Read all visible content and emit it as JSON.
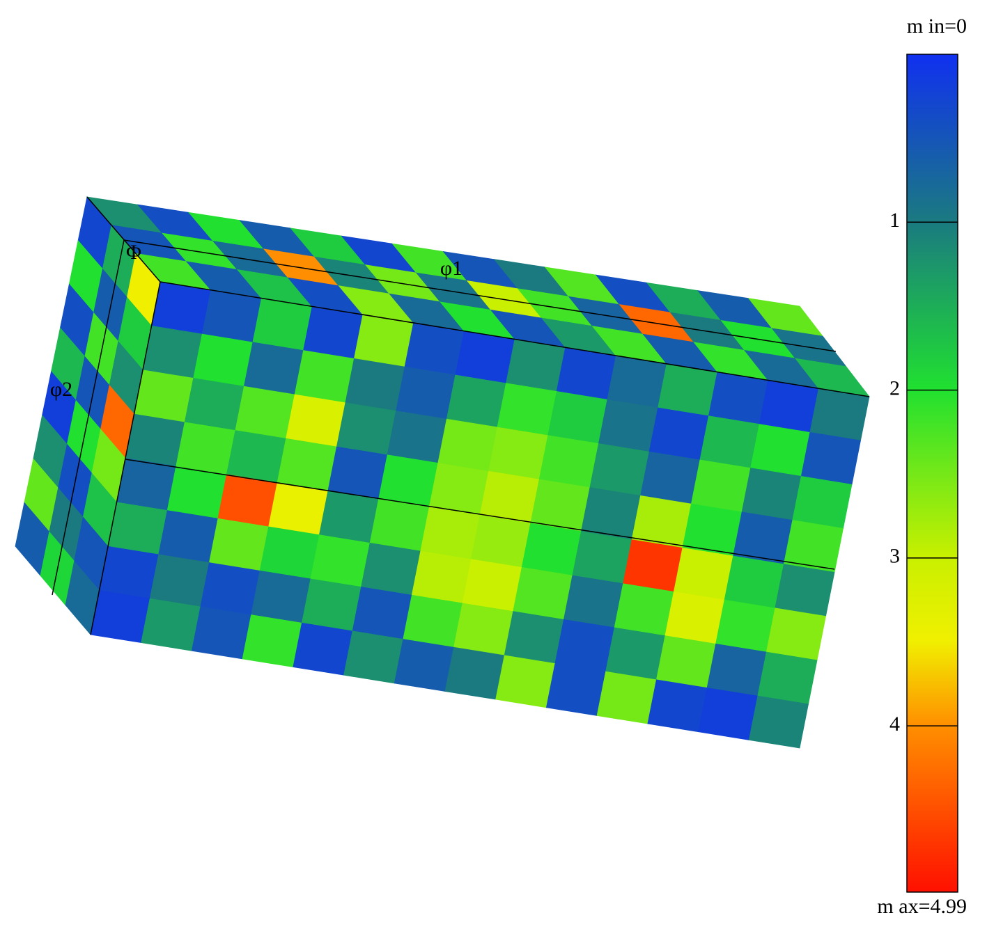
{
  "chart_data": {
    "type": "voxel",
    "axis_labels": [
      "Φ",
      "φ1",
      "φ2"
    ],
    "faces": {
      "front": {
        "values": [
          [
            0.2,
            0.5,
            1.8,
            0.3,
            2.6,
            0.4,
            0.2,
            1.2,
            0.3,
            0.8,
            1.5,
            0.4,
            0.2,
            1.0
          ],
          [
            1.2,
            2.0,
            0.8,
            2.2,
            1.0,
            0.6,
            1.4,
            2.1,
            1.8,
            0.9,
            0.3,
            1.6,
            2.0,
            0.5
          ],
          [
            2.4,
            1.5,
            2.3,
            3.2,
            1.2,
            0.9,
            2.5,
            2.6,
            2.2,
            1.3,
            0.7,
            2.2,
            1.1,
            1.8
          ],
          [
            1.1,
            2.2,
            1.6,
            2.3,
            0.5,
            2.0,
            2.6,
            2.9,
            2.4,
            1.1,
            2.8,
            2.0,
            0.6,
            2.2
          ],
          [
            0.7,
            2.0,
            4.5,
            3.4,
            1.3,
            2.2,
            2.8,
            2.7,
            2.0,
            1.4,
            4.7,
            3.0,
            1.8,
            1.2
          ],
          [
            1.5,
            0.6,
            2.4,
            1.9,
            2.1,
            1.2,
            2.9,
            3.0,
            2.3,
            0.9,
            2.2,
            3.2,
            2.1,
            2.6
          ],
          [
            0.3,
            1.0,
            0.4,
            0.8,
            1.5,
            0.5,
            2.2,
            2.6,
            1.2,
            0.4,
            1.3,
            2.4,
            0.7,
            1.5
          ],
          [
            0.2,
            1.3,
            0.5,
            2.1,
            0.3,
            1.2,
            0.6,
            1.0,
            2.6,
            0.4,
            2.5,
            0.3,
            0.2,
            1.1
          ]
        ]
      },
      "top": {
        "values": [
          [
            1.2,
            0.4,
            2.0,
            0.6,
            1.8,
            0.3,
            2.2,
            0.5,
            1.0,
            2.3,
            0.4,
            1.5,
            0.6,
            2.4
          ],
          [
            0.5,
            2.1,
            0.8,
            4.0,
            1.1,
            2.5,
            0.9,
            3.0,
            2.2,
            0.7,
            4.3,
            1.0,
            2.0,
            0.9
          ],
          [
            2.2,
            0.6,
            1.7,
            0.4,
            2.6,
            0.8,
            2.0,
            0.5,
            1.3,
            2.2,
            0.6,
            2.1,
            0.8,
            1.6
          ]
        ]
      },
      "side": {
        "values": [
          [
            0.3,
            1.5,
            3.5
          ],
          [
            2.0,
            0.6,
            1.8
          ],
          [
            0.4,
            2.2,
            1.2
          ],
          [
            1.6,
            0.5,
            4.3
          ],
          [
            0.2,
            2.0,
            2.5
          ],
          [
            1.2,
            0.4,
            1.7
          ],
          [
            2.4,
            1.0,
            0.5
          ],
          [
            0.6,
            1.9,
            0.8
          ]
        ]
      }
    },
    "colorbar": {
      "ylim": [
        0,
        4.99
      ],
      "yticks": [
        1,
        2,
        3,
        4
      ],
      "min_label": "m in=0",
      "max_label": "m ax=4.99"
    }
  }
}
